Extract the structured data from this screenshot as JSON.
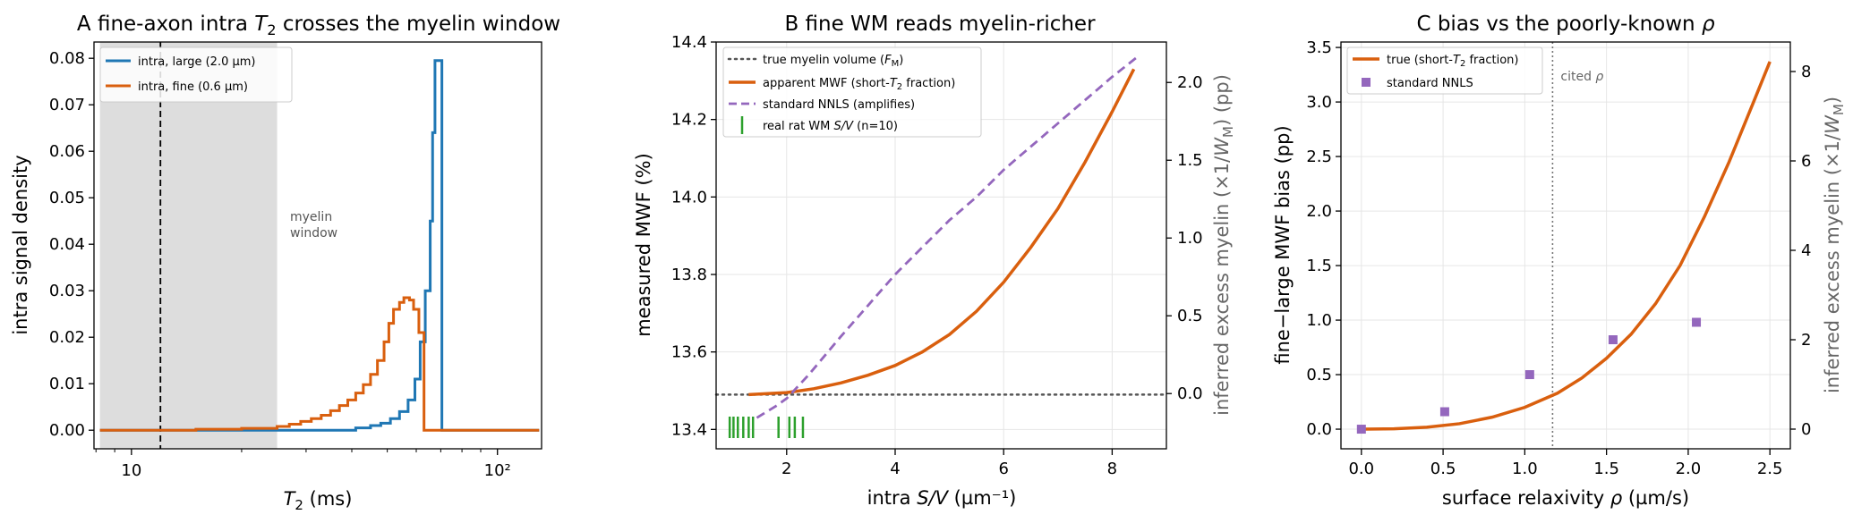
{
  "chart_data": [
    {
      "type": "step",
      "title_prefix": "A  fine-axon intra ",
      "title_sym": "T",
      "title_sub": "2",
      "title_suffix": " crosses the myelin window",
      "xlabel_sym": "T",
      "xlabel_sub": "2",
      "xlabel_suffix": "  (ms)",
      "ylabel": "intra signal density",
      "xscale": "log",
      "xlim": [
        7.9,
        132
      ],
      "ylim": [
        -0.004,
        0.0835
      ],
      "xticks": [
        {
          "v": 10,
          "label": "10"
        },
        {
          "v": 100,
          "label": "10²"
        }
      ],
      "yticks": [
        0,
        0.01,
        0.02,
        0.03,
        0.04,
        0.05,
        0.06,
        0.07,
        0.08
      ],
      "ytick_labels": [
        "0.00",
        "0.01",
        "0.02",
        "0.03",
        "0.04",
        "0.05",
        "0.06",
        "0.07",
        "0.08"
      ],
      "grid": false,
      "shaded_window": [
        8.2,
        25
      ],
      "window_label": [
        "myelin",
        "window"
      ],
      "vline": 12,
      "legend_position": "top-left",
      "series": [
        {
          "name": "intra, large (2.0 µm)",
          "color": "#1f77b4",
          "points": [
            [
              8.2,
              0
            ],
            [
              25,
              0
            ],
            [
              41,
              0.0005
            ],
            [
              45,
              0.001
            ],
            [
              48,
              0.0015
            ],
            [
              51,
              0.0025
            ],
            [
              54,
              0.004
            ],
            [
              57,
              0.0065
            ],
            [
              59.5,
              0.011
            ],
            [
              61.5,
              0.019
            ],
            [
              63.5,
              0.03
            ],
            [
              65.5,
              0.045
            ],
            [
              66.5,
              0.064
            ],
            [
              67.5,
              0.0795
            ],
            [
              70.5,
              0
            ],
            [
              130,
              0
            ]
          ]
        },
        {
          "name": "intra, fine (0.6 µm)",
          "color": "#d95f0e",
          "points": [
            [
              8.2,
              0
            ],
            [
              15,
              0.0002
            ],
            [
              20,
              0.0004
            ],
            [
              25,
              0.0008
            ],
            [
              27,
              0.0013
            ],
            [
              29,
              0.0019
            ],
            [
              31,
              0.0025
            ],
            [
              33,
              0.0032
            ],
            [
              35,
              0.0042
            ],
            [
              37,
              0.0053
            ],
            [
              39,
              0.0065
            ],
            [
              41,
              0.008
            ],
            [
              43,
              0.0098
            ],
            [
              45,
              0.012
            ],
            [
              47,
              0.015
            ],
            [
              49,
              0.019
            ],
            [
              50.5,
              0.023
            ],
            [
              52,
              0.026
            ],
            [
              54,
              0.0275
            ],
            [
              55.5,
              0.0285
            ],
            [
              57.5,
              0.028
            ],
            [
              59,
              0.026
            ],
            [
              61,
              0.021
            ],
            [
              63,
              0
            ],
            [
              130,
              0
            ]
          ]
        }
      ]
    },
    {
      "type": "line",
      "title": "B  fine WM reads myelin-richer",
      "xlabel_prefix": "intra ",
      "xlabel_sym": "S/V",
      "xlabel_suffix": "  (µm⁻¹)",
      "ylabel": "measured MWF  (%)",
      "y2label_prefix": "inferred excess myelin (×1/",
      "y2label_sym": "W",
      "y2label_sub": "M",
      "y2label_suffix": ")  (pp)",
      "xlim": [
        0.7,
        9.0
      ],
      "ylim": [
        13.35,
        14.4
      ],
      "y2lim": [
        -0.355,
        2.26
      ],
      "xticks": [
        2,
        4,
        6,
        8
      ],
      "yticks": [
        13.4,
        13.6,
        13.8,
        14.0,
        14.2,
        14.4
      ],
      "ytick_labels": [
        "13.4",
        "13.6",
        "13.8",
        "14.0",
        "14.2",
        "14.4"
      ],
      "y2ticks": [
        0.0,
        0.5,
        1.0,
        1.5,
        2.0
      ],
      "y2tick_labels": [
        "0.0",
        "0.5",
        "1.0",
        "1.5",
        "2.0"
      ],
      "grid": true,
      "hline": 13.49,
      "rug": [
        0.95,
        1.02,
        1.1,
        1.2,
        1.3,
        1.38,
        1.85,
        2.05,
        2.15,
        2.3
      ],
      "legend_position": "top-left",
      "series": [
        {
          "name": "true myelin volume (",
          "name_sym": "F",
          "name_sub": "M",
          "name_suffix": ")",
          "color": "#555555",
          "style": "dotted",
          "points": [
            [
              0.7,
              13.49
            ],
            [
              9.0,
              13.49
            ]
          ]
        },
        {
          "name": "apparent MWF (short-",
          "name_sym": "T",
          "name_sub": "2",
          "name_suffix": " fraction)",
          "color": "#d95f0e",
          "style": "solid",
          "points": [
            [
              1.3,
              13.49
            ],
            [
              2.0,
              13.495
            ],
            [
              2.5,
              13.505
            ],
            [
              3.0,
              13.52
            ],
            [
              3.5,
              13.54
            ],
            [
              4.0,
              13.565
            ],
            [
              4.5,
              13.6
            ],
            [
              5.0,
              13.645
            ],
            [
              5.5,
              13.705
            ],
            [
              6.0,
              13.78
            ],
            [
              6.5,
              13.87
            ],
            [
              7.0,
              13.97
            ],
            [
              7.5,
              14.09
            ],
            [
              8.0,
              14.22
            ],
            [
              8.4,
              14.33
            ]
          ]
        },
        {
          "name": "standard NNLS (amplifies)",
          "color": "#9467bd",
          "style": "dashed",
          "points": [
            [
              1.45,
              13.43
            ],
            [
              1.8,
              13.46
            ],
            [
              2.0,
              13.48
            ],
            [
              2.4,
              13.54
            ],
            [
              3.0,
              13.64
            ],
            [
              3.5,
              13.72
            ],
            [
              4.0,
              13.8
            ],
            [
              4.5,
              13.87
            ],
            [
              5.0,
              13.94
            ],
            [
              5.5,
              14.0
            ],
            [
              6.0,
              14.07
            ],
            [
              6.5,
              14.13
            ],
            [
              7.0,
              14.19
            ],
            [
              7.5,
              14.25
            ],
            [
              8.0,
              14.31
            ],
            [
              8.45,
              14.36
            ]
          ]
        },
        {
          "name": "real rat WM ",
          "name_sym": "S/V",
          "name_suffix": " (n=10)",
          "color": "#2ca02c",
          "style": "rug",
          "points": []
        }
      ]
    },
    {
      "type": "line",
      "title_prefix": "C  bias vs the poorly-known ",
      "title_sym": "ρ",
      "xlabel_prefix": "surface relaxivity ",
      "xlabel_sym": "ρ",
      "xlabel_suffix": "  (µm/s)",
      "ylabel": "fine−large MWF bias  (pp)",
      "y2label_prefix": "inferred excess myelin (×1/",
      "y2label_sym": "W",
      "y2label_sub": "M",
      "y2label_suffix": ")",
      "xlim": [
        -0.125,
        2.625
      ],
      "ylim": [
        -0.18,
        3.55
      ],
      "y2lim": [
        -0.44,
        8.66
      ],
      "xticks": [
        0.0,
        0.5,
        1.0,
        1.5,
        2.0,
        2.5
      ],
      "xtick_labels": [
        "0.0",
        "0.5",
        "1.0",
        "1.5",
        "2.0",
        "2.5"
      ],
      "yticks": [
        0.0,
        0.5,
        1.0,
        1.5,
        2.0,
        2.5,
        3.0,
        3.5
      ],
      "ytick_labels": [
        "0.0",
        "0.5",
        "1.0",
        "1.5",
        "2.0",
        "2.5",
        "3.0",
        "3.5"
      ],
      "y2ticks": [
        0,
        2,
        4,
        6,
        8
      ],
      "y2tick_labels": [
        "0",
        "2",
        "4",
        "6",
        "8"
      ],
      "grid": true,
      "vline": 1.17,
      "vline_label_prefix": "cited ",
      "vline_label_sym": "ρ",
      "legend_position": "top-left",
      "series": [
        {
          "name": "true (short-",
          "name_sym": "T",
          "name_sub": "2",
          "name_suffix": " fraction)",
          "color": "#d95f0e",
          "style": "solid",
          "points": [
            [
              0.0,
              0.0
            ],
            [
              0.2,
              0.003
            ],
            [
              0.4,
              0.018
            ],
            [
              0.6,
              0.05
            ],
            [
              0.8,
              0.11
            ],
            [
              1.0,
              0.2
            ],
            [
              1.2,
              0.33
            ],
            [
              1.35,
              0.47
            ],
            [
              1.5,
              0.65
            ],
            [
              1.65,
              0.87
            ],
            [
              1.8,
              1.15
            ],
            [
              1.95,
              1.5
            ],
            [
              2.1,
              1.95
            ],
            [
              2.25,
              2.45
            ],
            [
              2.4,
              3.0
            ],
            [
              2.5,
              3.37
            ]
          ]
        },
        {
          "name": "standard NNLS",
          "color": "#9467bd",
          "style": "marker",
          "points": [
            [
              0.0,
              0.0
            ],
            [
              0.51,
              0.16
            ],
            [
              1.03,
              0.5
            ],
            [
              1.54,
              0.82
            ],
            [
              2.05,
              0.98
            ]
          ]
        }
      ]
    }
  ]
}
